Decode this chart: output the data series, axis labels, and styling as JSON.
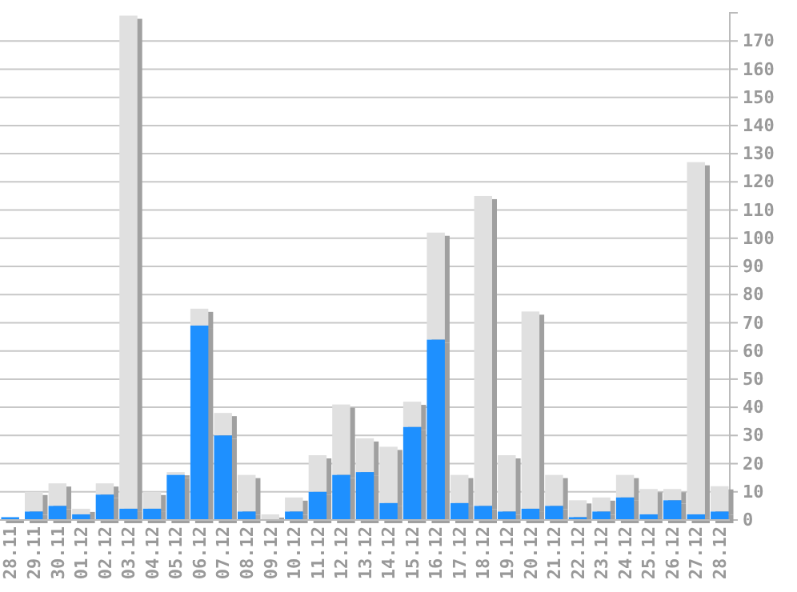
{
  "chart_data": {
    "type": "bar",
    "stacked": true,
    "categories": [
      "28.11",
      "29.11",
      "30.11",
      "01.12",
      "02.12",
      "03.12",
      "04.12",
      "05.12",
      "06.12",
      "07.12",
      "08.12",
      "09.12",
      "10.12",
      "11.12",
      "12.12",
      "13.12",
      "14.12",
      "15.12",
      "16.12",
      "17.12",
      "18.12",
      "19.12",
      "20.12",
      "21.12",
      "22.12",
      "23.12",
      "24.12",
      "25.12",
      "26.12",
      "27.12",
      "28.12"
    ],
    "series": [
      {
        "color": "#1e90ff",
        "values": [
          1,
          3,
          5,
          2,
          9,
          4,
          4,
          16,
          69,
          30,
          3,
          0,
          3,
          10,
          16,
          17,
          6,
          33,
          64,
          6,
          5,
          3,
          4,
          5,
          1,
          3,
          8,
          2,
          7,
          2,
          3
        ]
      },
      {
        "color": "#e0e0e0",
        "values": [
          0,
          7,
          8,
          2,
          4,
          175,
          6,
          1,
          6,
          8,
          13,
          2,
          5,
          13,
          25,
          12,
          20,
          9,
          38,
          10,
          110,
          20,
          70,
          11,
          6,
          5,
          8,
          9,
          4,
          125,
          9
        ]
      }
    ],
    "ylim": [
      0,
      180
    ],
    "yticks": [
      0,
      10,
      20,
      30,
      40,
      50,
      60,
      70,
      80,
      90,
      100,
      110,
      120,
      130,
      140,
      150,
      160,
      170
    ],
    "grid": "y"
  }
}
